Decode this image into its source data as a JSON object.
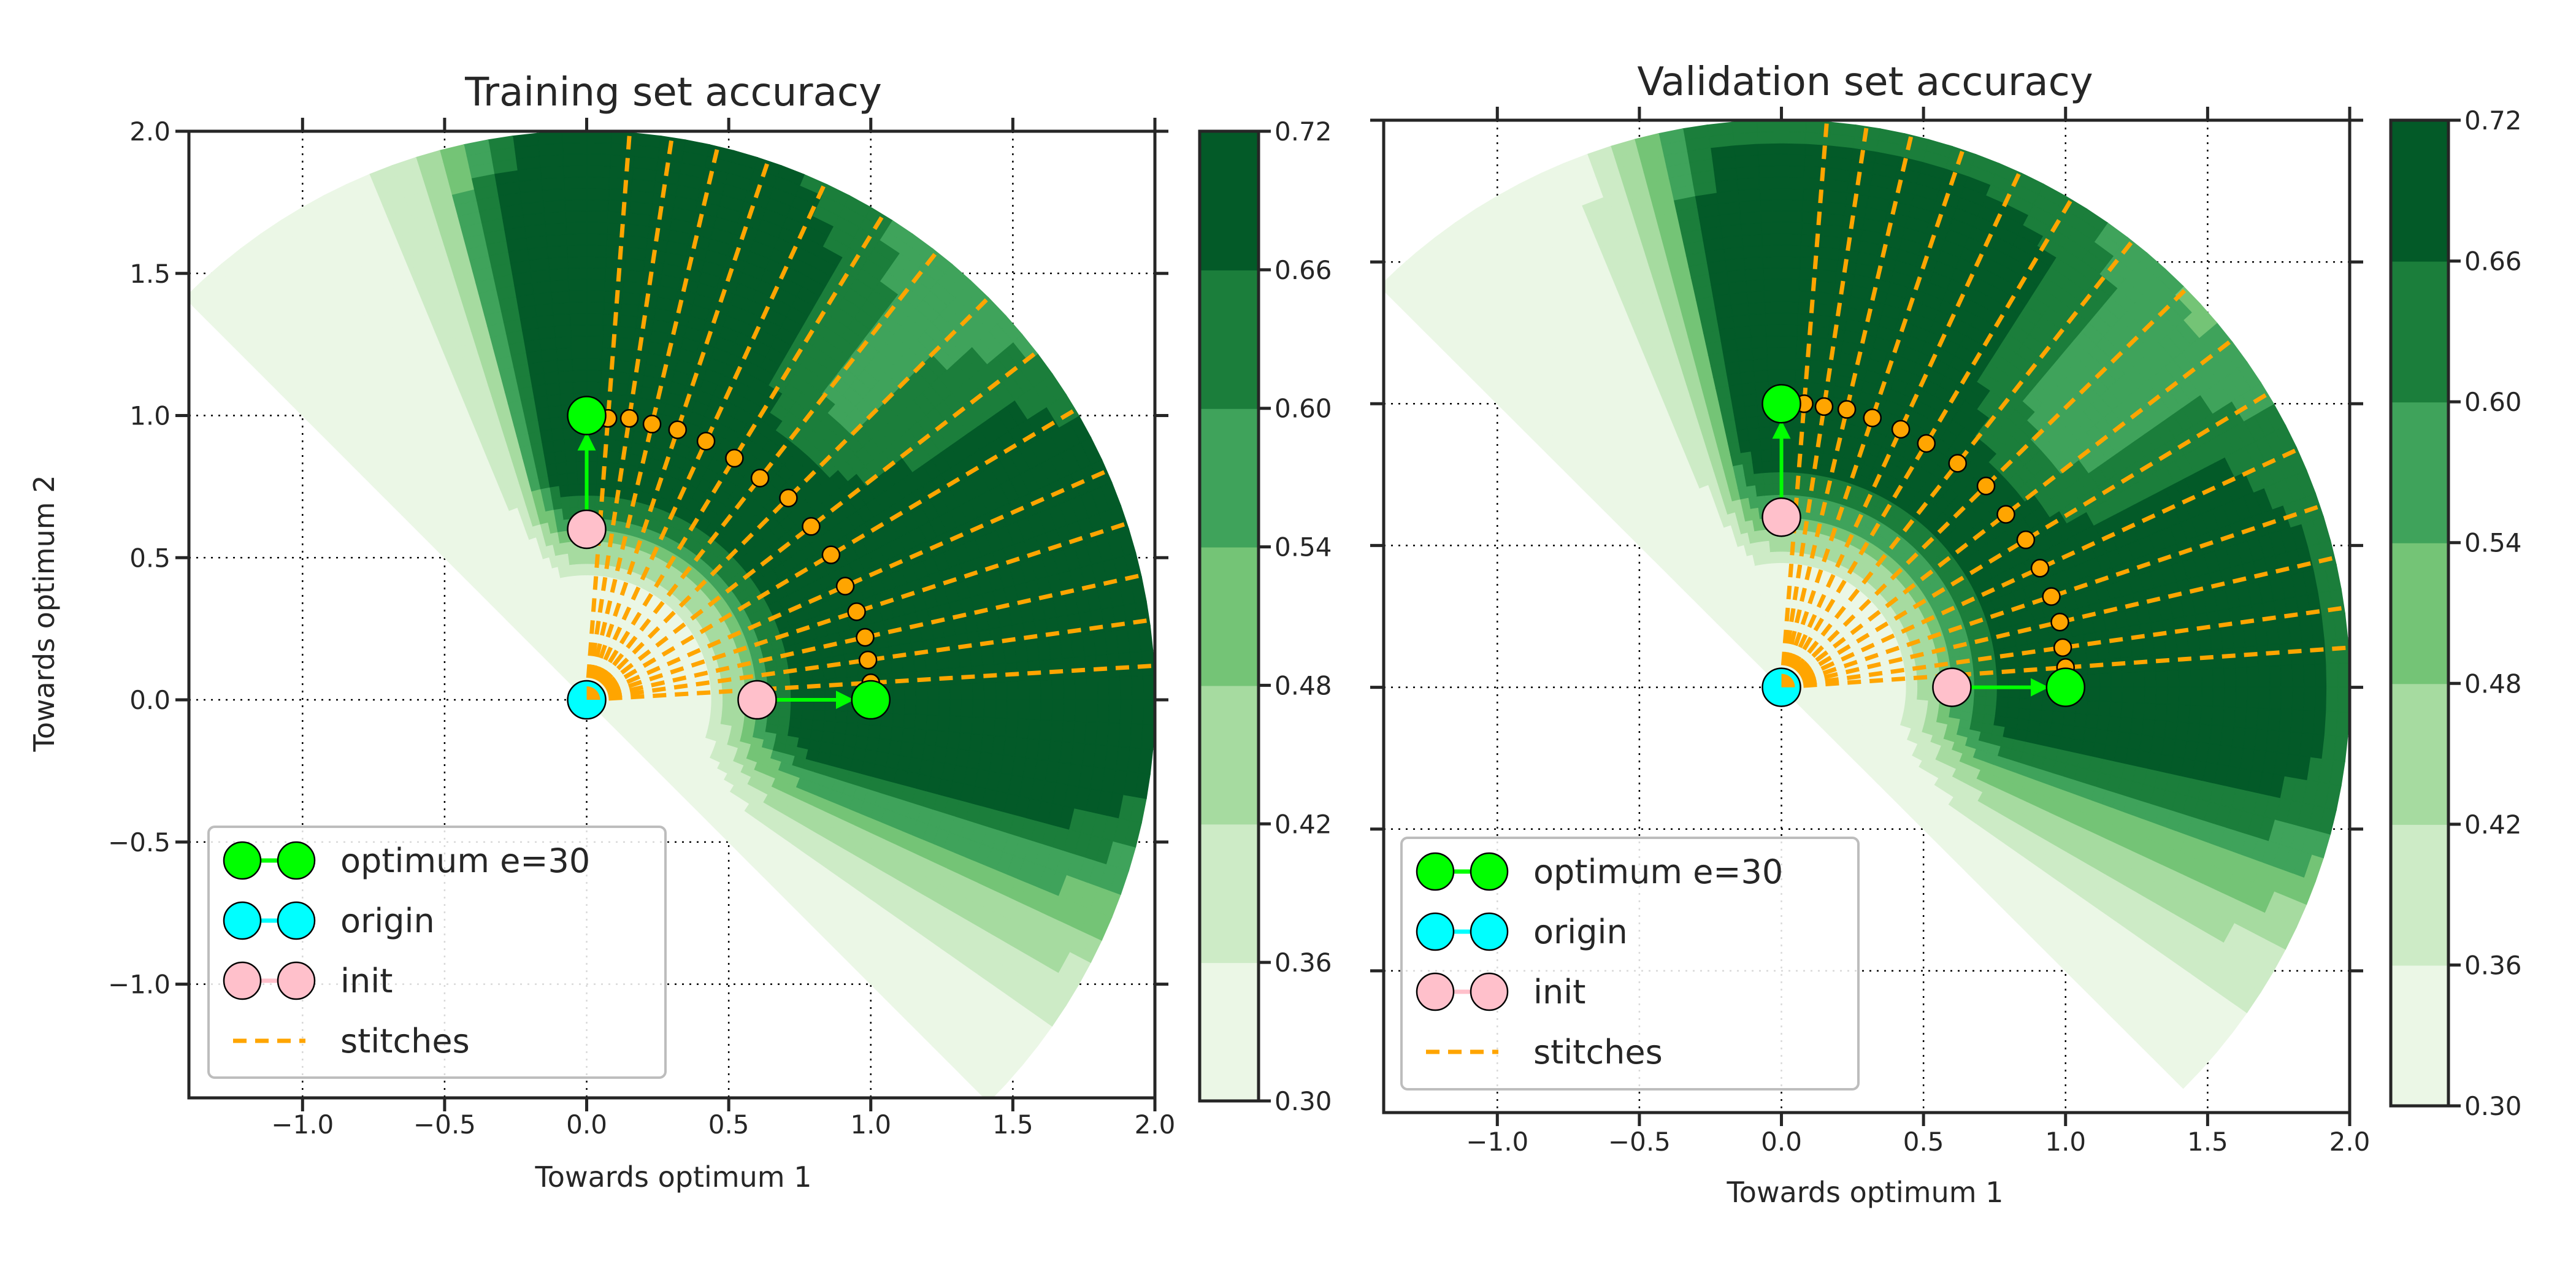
{
  "chart_data": [
    {
      "type": "contour",
      "title": "Training set accuracy",
      "xlabel": "Towards optimum 1",
      "ylabel": "Towards optimum 2",
      "xlim": [
        -1.4,
        2.0
      ],
      "ylim": [
        -1.4,
        2.0
      ],
      "xticks": [
        -1.0,
        -0.5,
        0.0,
        0.5,
        1.0,
        1.5,
        2.0
      ],
      "xtick_labels": [
        "−1.0",
        "−0.5",
        "0.0",
        "0.5",
        "1.0",
        "1.5",
        "2.0"
      ],
      "yticks": [
        -1.0,
        -0.5,
        0.0,
        0.5,
        1.0,
        1.5,
        2.0
      ],
      "ytick_labels": [
        "−1.0",
        "−0.5",
        "0.0",
        "0.5",
        "1.0",
        "1.5",
        "2.0"
      ],
      "grid": true,
      "colorbar": {
        "levels": [
          0.3,
          0.36,
          0.42,
          0.48,
          0.54,
          0.6,
          0.66,
          0.72
        ],
        "tick_labels": [
          "0.30",
          "0.36",
          "0.42",
          "0.48",
          "0.54",
          "0.60",
          "0.66",
          "0.72"
        ],
        "colors": [
          "#ebf7e6",
          "#cdebc6",
          "#a6dba0",
          "#74c476",
          "#3fa35b",
          "#1b7e3b",
          "#035a28"
        ]
      },
      "markers": {
        "optimum": [
          [
            0,
            1
          ],
          [
            1,
            0
          ]
        ],
        "origin": [
          [
            0,
            0
          ]
        ],
        "init": [
          [
            0,
            0.6
          ],
          [
            0.6,
            0
          ]
        ]
      },
      "stitch_points": [
        [
          0.075,
          0.99
        ],
        [
          0.15,
          0.99
        ],
        [
          0.23,
          0.97
        ],
        [
          0.32,
          0.95
        ],
        [
          0.42,
          0.91
        ],
        [
          0.52,
          0.85
        ],
        [
          0.61,
          0.78
        ],
        [
          0.71,
          0.71
        ],
        [
          0.79,
          0.61
        ],
        [
          0.86,
          0.51
        ],
        [
          0.91,
          0.4
        ],
        [
          0.95,
          0.31
        ],
        [
          0.98,
          0.22
        ],
        [
          0.99,
          0.14
        ],
        [
          1.0,
          0.06
        ]
      ],
      "legend_position": "lower-left",
      "legend": [
        {
          "label": "optimum e=30",
          "color": "#00ff00",
          "kind": "marker"
        },
        {
          "label": "origin",
          "color": "#00ffff",
          "kind": "marker"
        },
        {
          "label": "init",
          "color": "#ffc0cb",
          "kind": "marker"
        },
        {
          "label": "stitches",
          "color": "#ffa500",
          "kind": "dashed"
        }
      ]
    },
    {
      "type": "contour",
      "title": "Validation set accuracy",
      "xlabel": "Towards optimum 1",
      "xlim": [
        -1.4,
        2.0
      ],
      "ylim": [
        -1.5,
        2.0
      ],
      "xticks": [
        -1.0,
        -0.5,
        0.0,
        0.5,
        1.0,
        1.5,
        2.0
      ],
      "xtick_labels": [
        "−1.0",
        "−0.5",
        "0.0",
        "0.5",
        "1.0",
        "1.5",
        "2.0"
      ],
      "yticks": [
        -1.0,
        -0.5,
        0.0,
        0.5,
        1.0,
        1.5,
        2.0
      ],
      "grid": true,
      "colorbar": {
        "levels": [
          0.3,
          0.36,
          0.42,
          0.48,
          0.54,
          0.6,
          0.66,
          0.72
        ],
        "tick_labels": [
          "0.30",
          "0.36",
          "0.42",
          "0.48",
          "0.54",
          "0.60",
          "0.66",
          "0.72"
        ],
        "colors": [
          "#ebf7e6",
          "#cdebc6",
          "#a6dba0",
          "#74c476",
          "#3fa35b",
          "#1b7e3b",
          "#035a28"
        ]
      },
      "markers": {
        "optimum": [
          [
            0,
            1
          ],
          [
            1,
            0
          ]
        ],
        "origin": [
          [
            0,
            0
          ]
        ],
        "init": [
          [
            0,
            0.6
          ],
          [
            0.6,
            0
          ]
        ]
      },
      "stitch_points": [
        [
          0.08,
          1.0
        ],
        [
          0.15,
          0.99
        ],
        [
          0.23,
          0.98
        ],
        [
          0.32,
          0.95
        ],
        [
          0.42,
          0.91
        ],
        [
          0.51,
          0.86
        ],
        [
          0.62,
          0.79
        ],
        [
          0.72,
          0.71
        ],
        [
          0.79,
          0.61
        ],
        [
          0.86,
          0.52
        ],
        [
          0.91,
          0.42
        ],
        [
          0.95,
          0.32
        ],
        [
          0.98,
          0.23
        ],
        [
          0.99,
          0.14
        ],
        [
          1.0,
          0.07
        ]
      ],
      "legend_position": "lower-left",
      "legend": [
        {
          "label": "optimum e=30",
          "color": "#00ff00",
          "kind": "marker"
        },
        {
          "label": "origin",
          "color": "#00ffff",
          "kind": "marker"
        },
        {
          "label": "init",
          "color": "#ffc0cb",
          "kind": "marker"
        },
        {
          "label": "stitches",
          "color": "#ffa500",
          "kind": "dashed"
        }
      ]
    }
  ]
}
